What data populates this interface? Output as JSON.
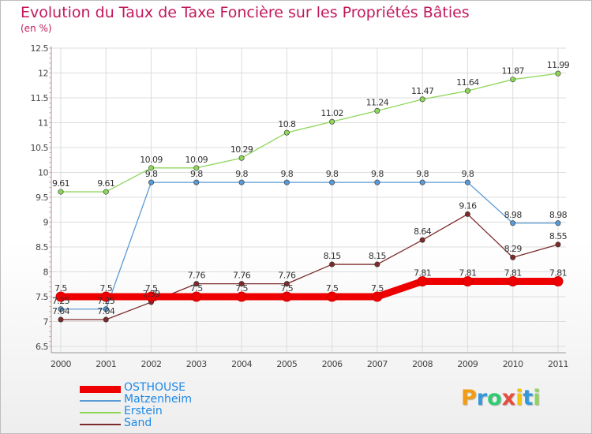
{
  "header": {
    "title": "Evolution du Taux de Taxe Foncière sur les Propriétés Bâties",
    "unit_label": "(en %)"
  },
  "chart_data": {
    "type": "line",
    "title": "Evolution du Taux de Taxe Foncière sur les Propriétés Bâties",
    "ylabel": "(en %)",
    "xlabel": "",
    "categories": [
      "2000",
      "2001",
      "2002",
      "2003",
      "2004",
      "2005",
      "2006",
      "2007",
      "2008",
      "2009",
      "2010",
      "2011"
    ],
    "ylim": [
      6.5,
      12.5
    ],
    "yticks": [
      6.5,
      7,
      7.5,
      8,
      8.5,
      9,
      9.5,
      10,
      10.5,
      11,
      11.5,
      12,
      12.5
    ],
    "grid": true,
    "legend_position": "bottom-left",
    "series": [
      {
        "name": "Erstein",
        "color": "#8ed65a",
        "values": [
          9.61,
          9.61,
          10.09,
          10.09,
          10.29,
          10.8,
          11.02,
          11.24,
          11.47,
          11.64,
          11.87,
          11.99
        ]
      },
      {
        "name": "Matzenheim",
        "color": "#5b9bd5",
        "values": [
          7.25,
          7.25,
          9.8,
          9.8,
          9.8,
          9.8,
          9.8,
          9.8,
          9.8,
          9.8,
          8.98,
          8.98
        ]
      },
      {
        "name": "Sand",
        "color": "#7d2a2a",
        "values": [
          7.04,
          7.04,
          7.39,
          7.76,
          7.76,
          7.76,
          8.15,
          8.15,
          8.64,
          9.16,
          8.29,
          8.55
        ]
      },
      {
        "name": "OSTHOUSE",
        "color": "#ee0000",
        "values": [
          7.5,
          7.5,
          7.5,
          7.5,
          7.5,
          7.5,
          7.5,
          7.5,
          7.81,
          7.81,
          7.81,
          7.81
        ]
      }
    ],
    "data_labels": {
      "Erstein": [
        "9.61",
        "9.61",
        "10.09",
        "10.09",
        "10.29",
        "10.8",
        "11.02",
        "11.24",
        "11.47",
        "11.64",
        "11.87",
        "11.99"
      ],
      "Matzenheim": [
        "7.25",
        "7.25",
        "9.8",
        "9.8",
        "9.8",
        "9.8",
        "9.8",
        "9.8",
        "9.8",
        "9.8",
        "8.98",
        "8.98"
      ],
      "Sand": [
        "7.04",
        "7.04",
        "7.39",
        "7.76",
        "7.76",
        "7.76",
        "8.15",
        "8.15",
        "8.64",
        "9.16",
        "8.29",
        "8.55"
      ],
      "OSTHOUSE": [
        "7.5",
        "7.5",
        "7.5",
        "7.5",
        "7.5",
        "7.5",
        "7.5",
        "7.5",
        "7.81",
        "7.81",
        "7.81",
        "7.81"
      ]
    }
  },
  "legend": {
    "items": [
      {
        "label": "OSTHOUSE",
        "color": "#ee0000",
        "thickness": "thick"
      },
      {
        "label": "Matzenheim",
        "color": "#5b9bd5",
        "thickness": "thin"
      },
      {
        "label": "Erstein",
        "color": "#8ed65a",
        "thickness": "thin"
      },
      {
        "label": "Sand",
        "color": "#7d2a2a",
        "thickness": "thin"
      }
    ]
  },
  "logo": {
    "text": "Proxiti",
    "letters": [
      {
        "char": "P",
        "color": "#f39c12"
      },
      {
        "char": "r",
        "color": "#3498db"
      },
      {
        "char": "o",
        "color": "#2ecc71"
      },
      {
        "char": "x",
        "color": "#e74c3c"
      },
      {
        "char": "i",
        "color": "#f1c40f"
      },
      {
        "char": "t",
        "color": "#3498db"
      },
      {
        "char": "i",
        "color": "#8ed65a"
      }
    ]
  }
}
